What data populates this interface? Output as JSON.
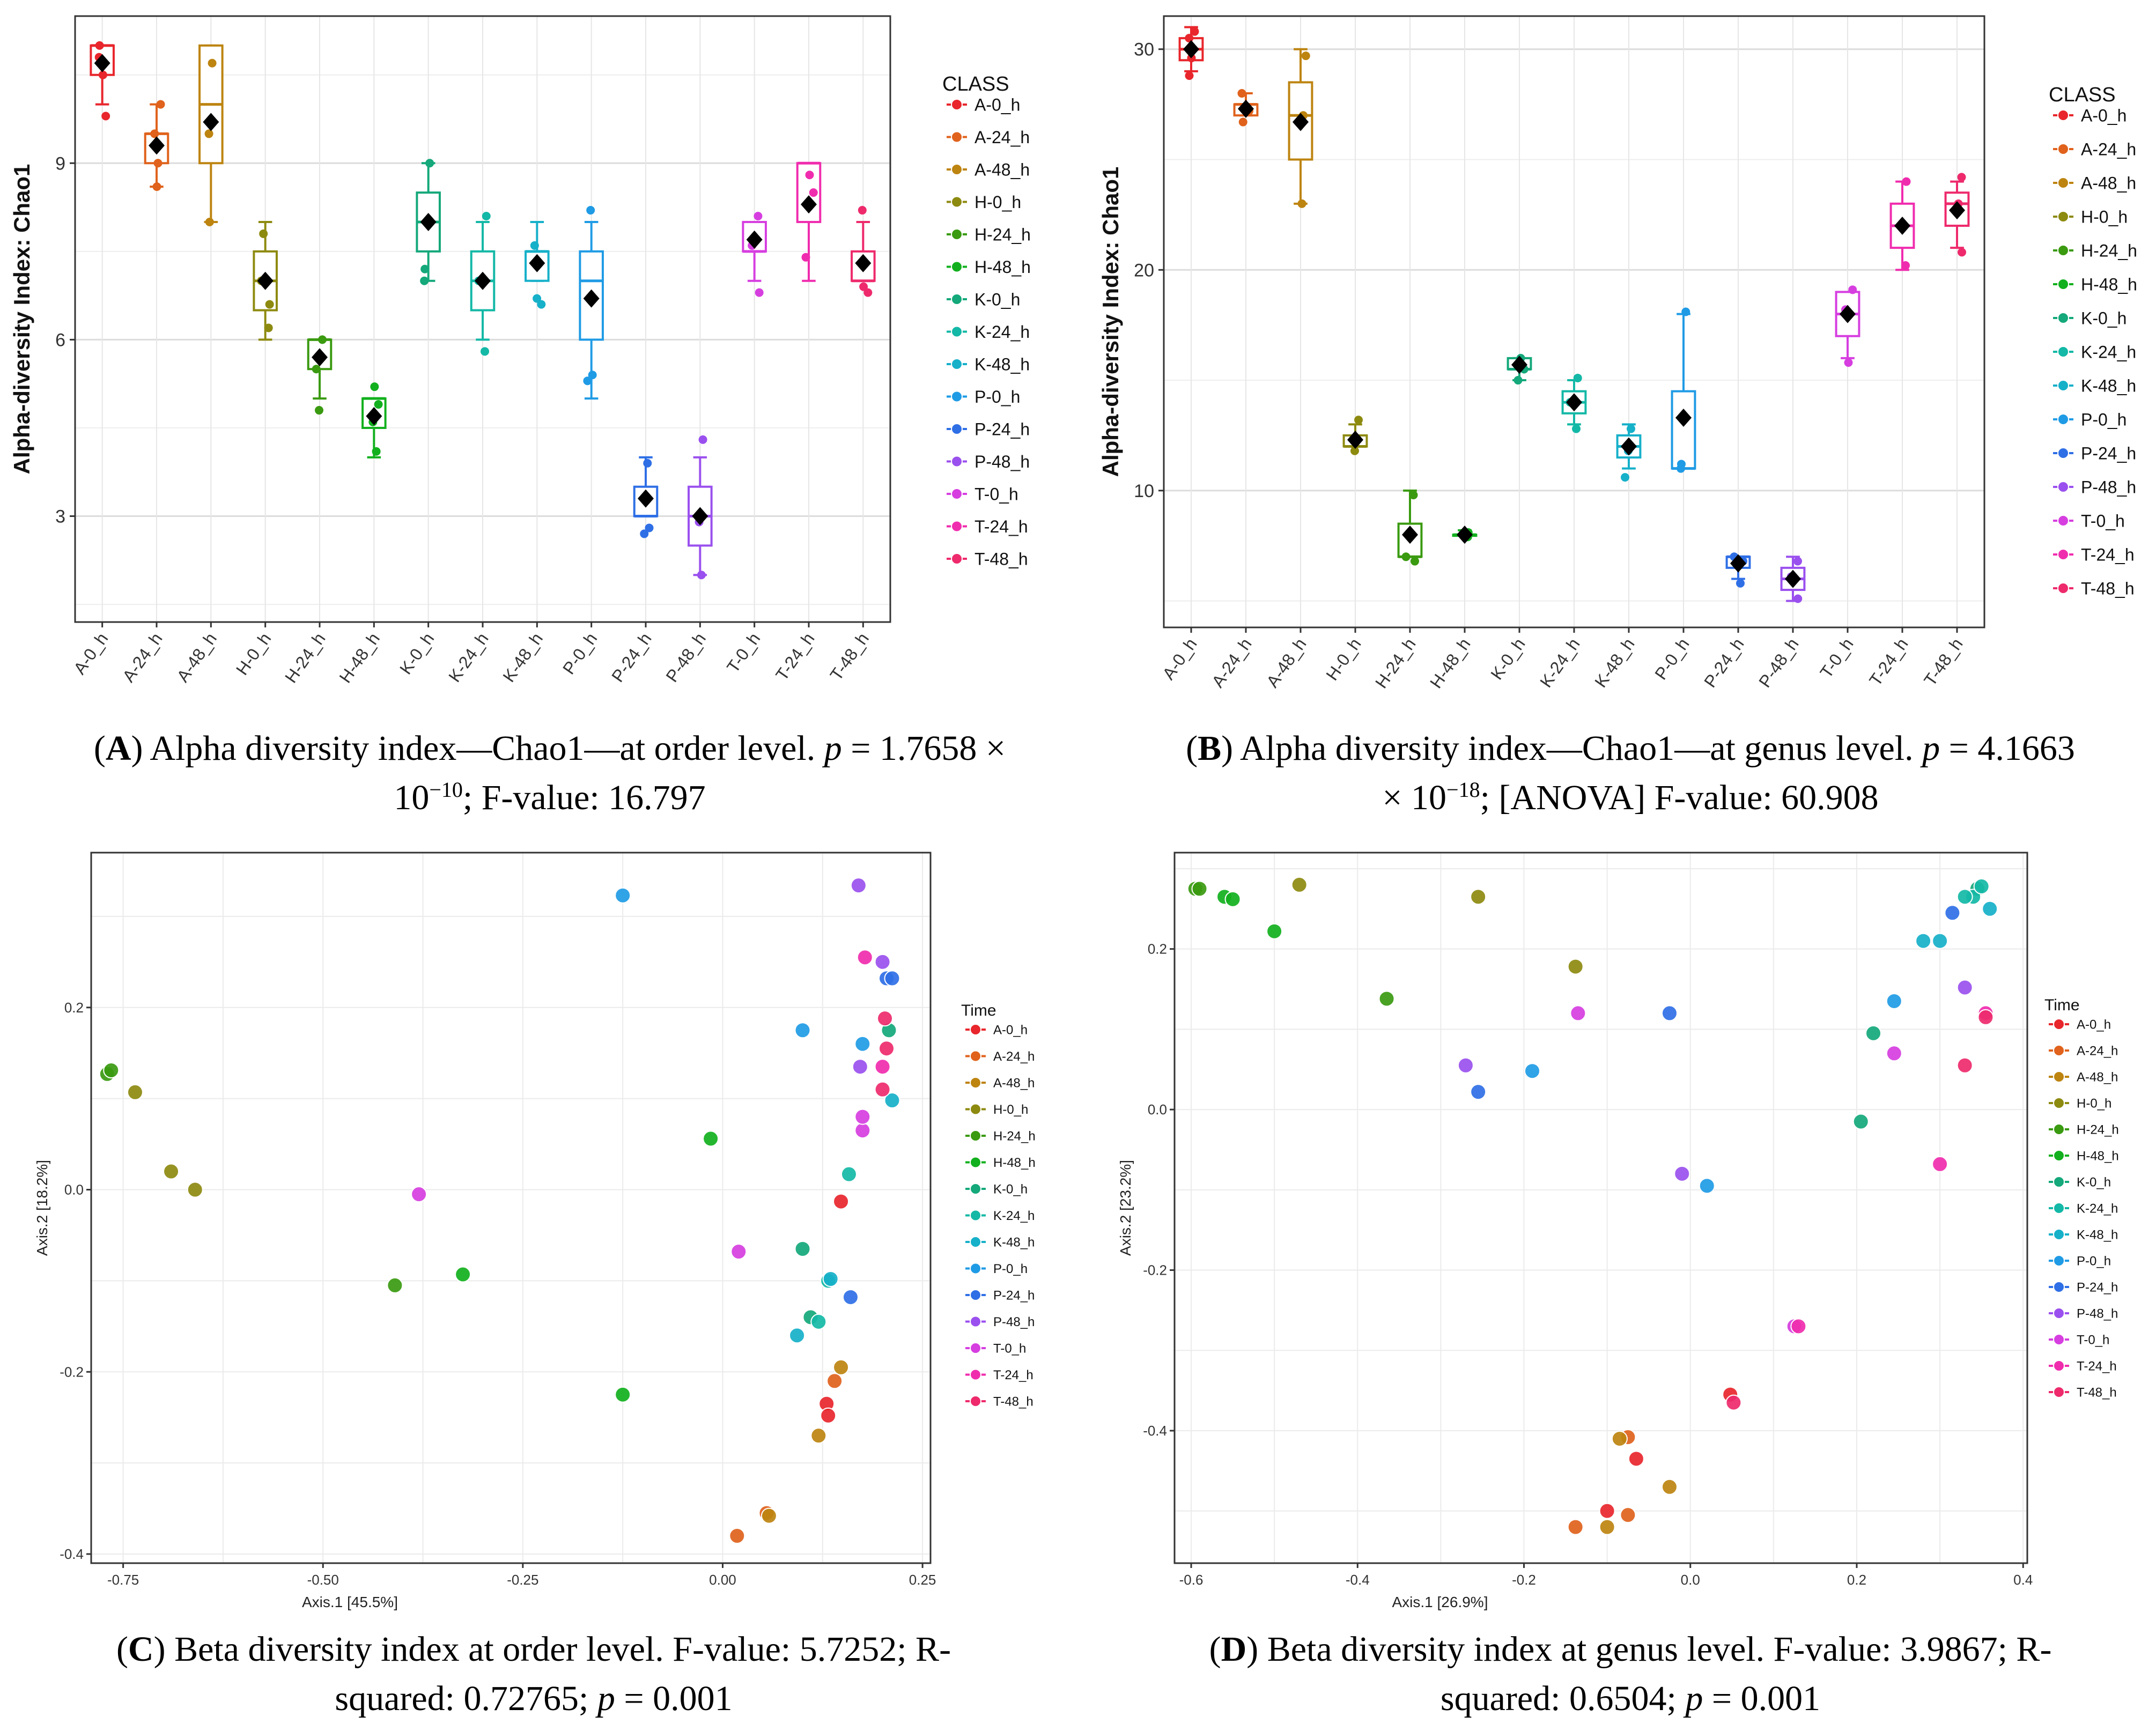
{
  "classes": [
    "A-0_h",
    "A-24_h",
    "A-48_h",
    "H-0_h",
    "H-24_h",
    "H-48_h",
    "K-0_h",
    "K-24_h",
    "K-48_h",
    "P-0_h",
    "P-24_h",
    "P-48_h",
    "T-0_h",
    "T-24_h",
    "T-48_h"
  ],
  "colors": [
    "#e8262c",
    "#e0621c",
    "#bd8410",
    "#8d8a10",
    "#3a9a10",
    "#12b01e",
    "#14a87a",
    "#13b8a6",
    "#16b0c9",
    "#1f9be5",
    "#2f6fe6",
    "#9a50ee",
    "#d63ee0",
    "#f02cae",
    "#ee2a6c"
  ],
  "chart_data": [
    {
      "id": "A",
      "type": "box",
      "ylabel": "Alpha-diversity Index: Chao1",
      "legend_title": "CLASS",
      "ylim": [
        1.2,
        11.5
      ],
      "yticks": [
        3,
        6,
        9
      ],
      "boxes": [
        {
          "q1": 10.5,
          "med": 11,
          "q3": 11,
          "lo": 10,
          "hi": 11,
          "mean": 10.7,
          "pts": [
            9.8,
            10.5,
            10.8,
            11
          ]
        },
        {
          "q1": 9,
          "med": 9.5,
          "q3": 9.5,
          "lo": 8.6,
          "hi": 10,
          "mean": 9.3,
          "pts": [
            8.6,
            9,
            9.5,
            10
          ]
        },
        {
          "q1": 9,
          "med": 10,
          "q3": 11,
          "lo": 8,
          "hi": 11,
          "mean": 9.7,
          "pts": [
            8,
            9.5,
            10.7
          ]
        },
        {
          "q1": 6.5,
          "med": 7,
          "q3": 7.5,
          "lo": 6,
          "hi": 8,
          "mean": 7,
          "pts": [
            6.2,
            6.6,
            7,
            7.8
          ]
        },
        {
          "q1": 5.5,
          "med": 6,
          "q3": 6,
          "lo": 5,
          "hi": 6,
          "mean": 5.7,
          "pts": [
            4.8,
            5.5,
            6
          ]
        },
        {
          "q1": 4.5,
          "med": 5,
          "q3": 5,
          "lo": 4,
          "hi": 5,
          "mean": 4.7,
          "pts": [
            4.1,
            4.6,
            4.9,
            5.2
          ]
        },
        {
          "q1": 7.5,
          "med": 8,
          "q3": 8.5,
          "lo": 7,
          "hi": 9,
          "mean": 8,
          "pts": [
            7,
            7.2,
            9
          ]
        },
        {
          "q1": 6.5,
          "med": 7,
          "q3": 7.5,
          "lo": 6,
          "hi": 8,
          "mean": 7,
          "pts": [
            5.8,
            7,
            8.1
          ]
        },
        {
          "q1": 7,
          "med": 7.5,
          "q3": 7.5,
          "lo": 7,
          "hi": 8,
          "mean": 7.3,
          "pts": [
            6.6,
            6.7,
            7.6
          ]
        },
        {
          "q1": 6,
          "med": 7,
          "q3": 7.5,
          "lo": 5,
          "hi": 8,
          "mean": 6.7,
          "pts": [
            5.3,
            5.4,
            8.2
          ]
        },
        {
          "q1": 3,
          "med": 3,
          "q3": 3.5,
          "lo": 3,
          "hi": 4,
          "mean": 3.3,
          "pts": [
            2.7,
            2.8,
            3.9
          ]
        },
        {
          "q1": 2.5,
          "med": 3,
          "q3": 3.5,
          "lo": 2,
          "hi": 4,
          "mean": 3,
          "pts": [
            2,
            2.9,
            4.3
          ]
        },
        {
          "q1": 7.5,
          "med": 7.5,
          "q3": 8,
          "lo": 7,
          "hi": 8,
          "mean": 7.7,
          "pts": [
            6.8,
            7.6,
            8.1
          ]
        },
        {
          "q1": 8,
          "med": 9,
          "q3": 9,
          "lo": 7,
          "hi": 9,
          "mean": 8.3,
          "pts": [
            7.4,
            8.5,
            8.8
          ]
        },
        {
          "q1": 7,
          "med": 7,
          "q3": 7.5,
          "lo": 7,
          "hi": 8,
          "mean": 7.3,
          "pts": [
            6.8,
            6.9,
            8.2
          ]
        }
      ]
    },
    {
      "id": "B",
      "type": "box",
      "ylabel": "Alpha-diversity Index: Chao1",
      "legend_title": "CLASS",
      "ylim": [
        3.8,
        31.5
      ],
      "yticks": [
        10,
        20,
        30
      ],
      "boxes": [
        {
          "q1": 29.5,
          "med": 30,
          "q3": 30.5,
          "lo": 29,
          "hi": 31,
          "mean": 30,
          "pts": [
            28.8,
            29.6,
            30.5,
            30.8
          ]
        },
        {
          "q1": 27,
          "med": 27.5,
          "q3": 27.5,
          "lo": 27,
          "hi": 28,
          "mean": 27.3,
          "pts": [
            26.7,
            27.2,
            28
          ]
        },
        {
          "q1": 25,
          "med": 27,
          "q3": 28.5,
          "lo": 23,
          "hi": 30,
          "mean": 26.7,
          "pts": [
            23,
            27,
            29.7
          ]
        },
        {
          "q1": 12,
          "med": 12,
          "q3": 12.5,
          "lo": 12,
          "hi": 13,
          "mean": 12.3,
          "pts": [
            11.8,
            12.2,
            13.2
          ]
        },
        {
          "q1": 7,
          "med": 7,
          "q3": 8.5,
          "lo": 7,
          "hi": 10,
          "mean": 8,
          "pts": [
            6.8,
            7,
            9.8
          ]
        },
        {
          "q1": 8,
          "med": 8,
          "q3": 8,
          "lo": 8,
          "hi": 8.2,
          "mean": 8,
          "pts": [
            7.9,
            8.1
          ]
        },
        {
          "q1": 15.5,
          "med": 15.5,
          "q3": 16,
          "lo": 15,
          "hi": 16,
          "mean": 15.7,
          "pts": [
            15,
            15.5,
            16
          ]
        },
        {
          "q1": 13.5,
          "med": 14,
          "q3": 14.5,
          "lo": 13,
          "hi": 15,
          "mean": 14,
          "pts": [
            12.8,
            14,
            15.1
          ]
        },
        {
          "q1": 11.5,
          "med": 12,
          "q3": 12.5,
          "lo": 11,
          "hi": 13,
          "mean": 12,
          "pts": [
            10.6,
            11.8,
            12.8
          ]
        },
        {
          "q1": 11,
          "med": 11,
          "q3": 14.5,
          "lo": 11,
          "hi": 18,
          "mean": 13.3,
          "pts": [
            11,
            11.2,
            18.1
          ]
        },
        {
          "q1": 6.5,
          "med": 7,
          "q3": 7,
          "lo": 6,
          "hi": 7,
          "mean": 6.7,
          "pts": [
            5.8,
            6.8,
            7
          ]
        },
        {
          "q1": 5.5,
          "med": 6,
          "q3": 6.5,
          "lo": 5,
          "hi": 7,
          "mean": 6,
          "pts": [
            5.1,
            6.1,
            6.8
          ]
        },
        {
          "q1": 17,
          "med": 18,
          "q3": 19,
          "lo": 16,
          "hi": 19,
          "mean": 18,
          "pts": [
            15.8,
            18.2,
            19.1
          ]
        },
        {
          "q1": 21,
          "med": 22,
          "q3": 23,
          "lo": 20,
          "hi": 24,
          "mean": 22,
          "pts": [
            20.2,
            22,
            24
          ]
        },
        {
          "q1": 22,
          "med": 23,
          "q3": 23.5,
          "lo": 21,
          "hi": 24,
          "mean": 22.7,
          "pts": [
            20.8,
            23,
            24.2
          ]
        }
      ]
    },
    {
      "id": "C",
      "type": "scatter",
      "xlabel": "Axis.1   [45.5%]",
      "ylabel": "Axis.2   [18.2%]",
      "legend_title": "Time",
      "xlim": [
        -0.79,
        0.26
      ],
      "ylim": [
        -0.41,
        0.37
      ],
      "xticks": [
        -0.75,
        -0.5,
        -0.25,
        0.0,
        0.25
      ],
      "xticklabels": [
        "-0.75",
        "-0.50",
        "-0.25",
        "0.00",
        "0.25"
      ],
      "yticks": [
        -0.4,
        -0.2,
        0.0,
        0.2
      ],
      "yticklabels": [
        "-0.4",
        "-0.2",
        "0.0",
        "0.2"
      ],
      "points": [
        [
          0.148,
          -0.013,
          0
        ],
        [
          0.13,
          -0.235,
          0
        ],
        [
          0.132,
          -0.248,
          0
        ],
        [
          0.14,
          -0.21,
          1
        ],
        [
          0.018,
          -0.38,
          1
        ],
        [
          0.055,
          -0.355,
          1
        ],
        [
          0.148,
          -0.195,
          2
        ],
        [
          0.12,
          -0.27,
          2
        ],
        [
          0.058,
          -0.358,
          2
        ],
        [
          -0.735,
          0.107,
          3
        ],
        [
          -0.69,
          0.02,
          3
        ],
        [
          -0.66,
          0.0,
          3
        ],
        [
          -0.77,
          0.127,
          4
        ],
        [
          -0.765,
          0.131,
          4
        ],
        [
          -0.41,
          -0.105,
          4
        ],
        [
          -0.325,
          -0.093,
          5
        ],
        [
          -0.125,
          -0.225,
          5
        ],
        [
          -0.015,
          0.056,
          5
        ],
        [
          0.1,
          -0.065,
          6
        ],
        [
          0.11,
          -0.14,
          6
        ],
        [
          0.208,
          0.175,
          6
        ],
        [
          0.12,
          -0.145,
          7
        ],
        [
          0.132,
          -0.1,
          7
        ],
        [
          0.158,
          0.017,
          7
        ],
        [
          0.093,
          -0.16,
          8
        ],
        [
          0.135,
          -0.098,
          8
        ],
        [
          0.212,
          0.098,
          8
        ],
        [
          -0.125,
          0.323,
          9
        ],
        [
          0.1,
          0.175,
          9
        ],
        [
          0.175,
          0.16,
          9
        ],
        [
          0.16,
          -0.118,
          10
        ],
        [
          0.205,
          0.232,
          10
        ],
        [
          0.212,
          0.232,
          10
        ],
        [
          0.17,
          0.334,
          11
        ],
        [
          0.172,
          0.135,
          11
        ],
        [
          0.2,
          0.25,
          11
        ],
        [
          -0.38,
          -0.005,
          12
        ],
        [
          0.02,
          -0.068,
          12
        ],
        [
          0.175,
          0.065,
          12
        ],
        [
          0.175,
          0.08,
          12
        ],
        [
          0.178,
          0.255,
          13
        ],
        [
          0.2,
          0.135,
          13
        ],
        [
          0.2,
          0.11,
          14
        ],
        [
          0.205,
          0.155,
          14
        ],
        [
          0.203,
          0.188,
          14
        ]
      ]
    },
    {
      "id": "D",
      "type": "scatter",
      "xlabel": "Axis.1   [26.9%]",
      "ylabel": "Axis.2   [23.2%]",
      "legend_title": "Time",
      "xlim": [
        -0.62,
        0.405
      ],
      "ylim": [
        -0.565,
        0.32
      ],
      "xticks": [
        -0.6,
        -0.4,
        -0.2,
        0.0,
        0.2,
        0.4
      ],
      "xticklabels": [
        "-0.6",
        "-0.4",
        "-0.2",
        "0.0",
        "0.2",
        "0.4"
      ],
      "yticks": [
        -0.4,
        -0.2,
        0.0,
        0.2
      ],
      "yticklabels": [
        "-0.4",
        "-0.2",
        "0.0",
        "0.2"
      ],
      "points": [
        [
          -0.065,
          -0.435,
          0
        ],
        [
          -0.1,
          -0.5,
          0
        ],
        [
          0.048,
          -0.355,
          0
        ],
        [
          -0.138,
          -0.52,
          1
        ],
        [
          -0.075,
          -0.408,
          1
        ],
        [
          -0.075,
          -0.505,
          1
        ],
        [
          -0.085,
          -0.41,
          2
        ],
        [
          -0.025,
          -0.47,
          2
        ],
        [
          -0.1,
          -0.52,
          2
        ],
        [
          -0.47,
          0.28,
          3
        ],
        [
          -0.255,
          0.265,
          3
        ],
        [
          -0.138,
          0.178,
          3
        ],
        [
          -0.595,
          0.275,
          4
        ],
        [
          -0.59,
          0.275,
          4
        ],
        [
          -0.365,
          0.138,
          4
        ],
        [
          -0.56,
          0.265,
          5
        ],
        [
          -0.55,
          0.262,
          5
        ],
        [
          -0.5,
          0.222,
          5
        ],
        [
          0.205,
          -0.015,
          6
        ],
        [
          0.22,
          0.095,
          6
        ],
        [
          0.345,
          0.275,
          6
        ],
        [
          0.34,
          0.265,
          7
        ],
        [
          0.35,
          0.278,
          7
        ],
        [
          0.33,
          0.265,
          7
        ],
        [
          0.28,
          0.21,
          8
        ],
        [
          0.3,
          0.21,
          8
        ],
        [
          0.36,
          0.25,
          8
        ],
        [
          0.245,
          0.135,
          9
        ],
        [
          -0.19,
          0.048,
          9
        ],
        [
          0.02,
          -0.095,
          9
        ],
        [
          -0.255,
          0.022,
          10
        ],
        [
          -0.025,
          0.12,
          10
        ],
        [
          0.315,
          0.245,
          10
        ],
        [
          -0.27,
          0.055,
          11
        ],
        [
          -0.01,
          -0.08,
          11
        ],
        [
          0.33,
          0.152,
          11
        ],
        [
          -0.135,
          0.12,
          12
        ],
        [
          0.245,
          0.07,
          12
        ],
        [
          0.125,
          -0.27,
          12
        ],
        [
          0.3,
          -0.068,
          13
        ],
        [
          0.13,
          -0.27,
          13
        ],
        [
          0.355,
          0.12,
          13
        ],
        [
          0.33,
          0.055,
          14
        ],
        [
          0.355,
          0.115,
          14
        ],
        [
          0.052,
          -0.365,
          14
        ]
      ]
    }
  ],
  "captions": {
    "A": {
      "label": "A",
      "text1": " Alpha diversity index—Chao1—at order level. ",
      "p": "p",
      "text2": " = 1.7658 ×",
      "text3": "10",
      "exp": "−10",
      "text4": "; F-value: 16.797"
    },
    "B": {
      "label": "B",
      "text1": " Alpha diversity index—Chao1—at genus level. ",
      "p": "p",
      "text2": " = 4.1663",
      "text3": "× 10",
      "exp": "−18",
      "text4": "; [ANOVA] F-value: 60.908"
    },
    "C": {
      "label": "C",
      "text1": " Beta diversity index at order level. F-value: 5.7252; R-",
      "text2": "squared: 0.72765; ",
      "p": "p",
      "text3": " = 0.001"
    },
    "D": {
      "label": "D",
      "text1": " Beta diversity index at genus level. F-value: 3.9867; R-",
      "text2": "squared: 0.6504; ",
      "p": "p",
      "text3": " = 0.001"
    }
  }
}
